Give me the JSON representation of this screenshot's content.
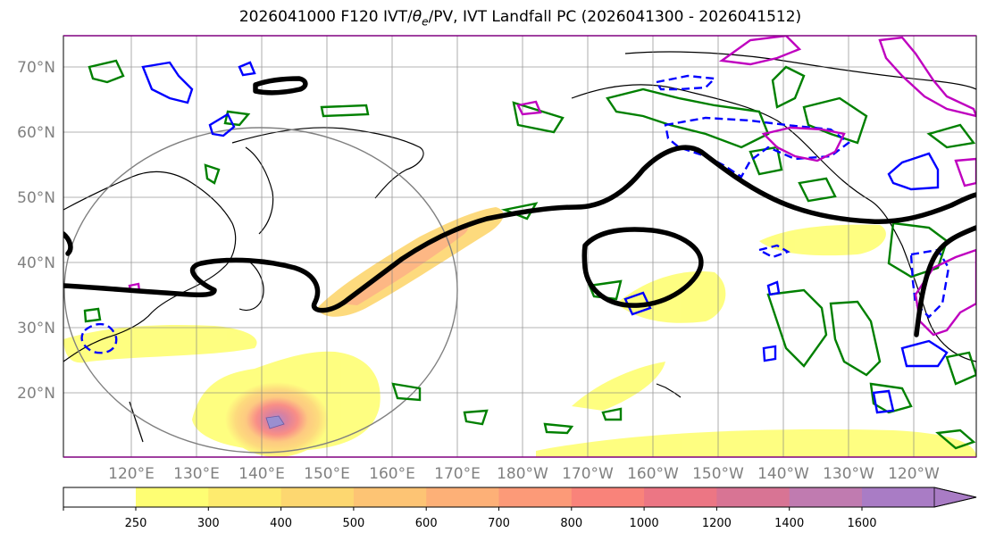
{
  "title": {
    "prefix": "2026041000 F120 IVT/",
    "theta": "θ",
    "sub": "e",
    "suffix": "/PV, IVT Landfall PC (2026041300 - 2026041512)"
  },
  "lat_labels": [
    "70°N",
    "60°N",
    "50°N",
    "40°N",
    "30°N",
    "20°N"
  ],
  "lon_labels": [
    "120°E",
    "130°E",
    "140°E",
    "150°E",
    "160°E",
    "170°E",
    "180°W",
    "170°W",
    "160°W",
    "150°W",
    "140°W",
    "130°W",
    "120°W"
  ],
  "colorbar": {
    "ticks": [
      "250",
      "300",
      "400",
      "500",
      "600",
      "700",
      "800",
      "1000",
      "1200",
      "1400",
      "1600"
    ],
    "colors": [
      "#fefe73",
      "#feeb6e",
      "#fdd770",
      "#fdc474",
      "#fdb077",
      "#fc9a78",
      "#f9837a",
      "#ec7684",
      "#d87494",
      "#c07bb0",
      "#a97cc5"
    ]
  },
  "legend_colors": {
    "pv_contour": "#000000",
    "theta_e_warm": "#008000",
    "theta_e_cold": "#0000ff",
    "ivt_pc": "#bf00bf",
    "circle": "#808080"
  }
}
